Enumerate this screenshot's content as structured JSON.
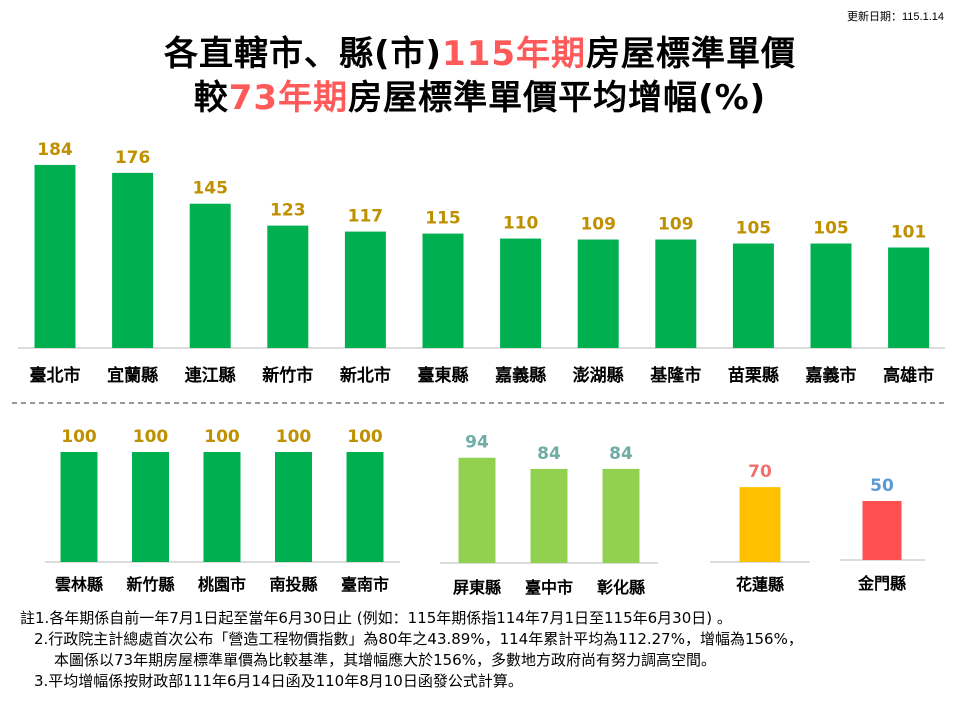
{
  "update_label": "更新日期：115.1.14",
  "title": {
    "line1": [
      "各直轄市、縣(市)",
      "115年期",
      "房屋標準單價"
    ],
    "line2": [
      "較",
      "73年期",
      "房屋標準單價平均增幅(%)"
    ]
  },
  "colors": {
    "highlight": "#ff5a5a",
    "green": "#00b050",
    "light_green": "#92d050",
    "yellow": "#ffc000",
    "red": "#ff5050"
  },
  "chart_data": [
    {
      "type": "bar",
      "categories": [
        "臺北市",
        "宜蘭縣",
        "連江縣",
        "新竹市",
        "新北市",
        "臺東縣",
        "嘉義縣",
        "澎湖縣",
        "基隆市",
        "苗栗縣",
        "嘉義市",
        "高雄市"
      ],
      "values": [
        184,
        176,
        145,
        123,
        117,
        115,
        110,
        109,
        109,
        105,
        105,
        101
      ],
      "bar_color": "#00b050",
      "label_color": "#bf9000"
    },
    {
      "type": "bar",
      "categories": [
        "雲林縣",
        "新竹縣",
        "桃園市",
        "南投縣",
        "臺南市"
      ],
      "values": [
        100,
        100,
        100,
        100,
        100
      ],
      "bar_color": "#00b050",
      "label_color": "#bf9000"
    },
    {
      "type": "bar",
      "categories": [
        "屏東縣",
        "臺中市",
        "彰化縣"
      ],
      "values": [
        94,
        84,
        84
      ],
      "bar_color": "#92d050",
      "label_color": "#6fada6"
    },
    {
      "type": "bar",
      "categories": [
        "花蓮縣"
      ],
      "values": [
        70
      ],
      "bar_color": "#ffc000",
      "label_color": "#f07070"
    },
    {
      "type": "bar",
      "categories": [
        "金門縣"
      ],
      "values": [
        50
      ],
      "bar_color": "#ff5050",
      "label_color": "#5b9bd5"
    }
  ],
  "notes": [
    "註1.各年期係自前一年7月1日起至當年6月30日止 (例如：115年期係指114年7月1日至115年6月30日) 。",
    "2.行政院主計總處首次公布「營造工程物價指數」為80年之43.89%，114年累計平均為112.27%，增幅為156%，",
    "本圖係以73年期房屋標準單價為比較基準，其增幅應大於156%，多數地方政府尚有努力調高空間。",
    "3.平均增幅係按財政部111年6月14日函及110年8月10日函發公式計算。"
  ]
}
